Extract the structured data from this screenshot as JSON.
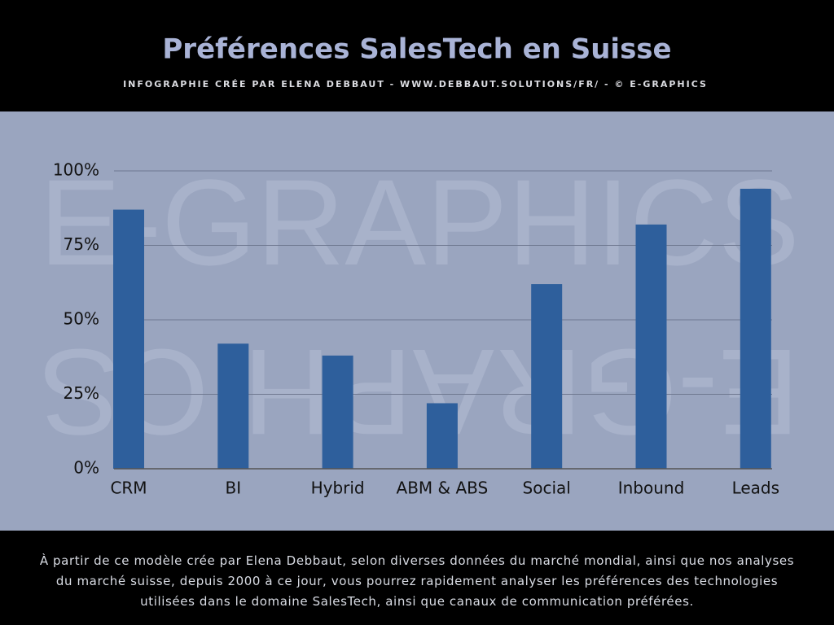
{
  "chart_data": {
    "type": "bar",
    "title": "Préférences SalesTech en Suisse",
    "subtitle": "INFOGRAPHIE CRÉE PAR ELENA DEBBAUT - WWW.DEBBAUT.SOLUTIONS/FR/ - © E-GRAPHICS",
    "watermark": "E-GRAPHICS",
    "categories": [
      "CRM",
      "BI",
      "Hybrid",
      "ABM & ABS",
      "Social",
      "Inbound",
      "Leads"
    ],
    "values": [
      87,
      42,
      38,
      22,
      62,
      82,
      94
    ],
    "color": "#2e5f9c",
    "ylim": [
      0,
      100
    ],
    "yticks": [
      {
        "value": 0,
        "label": "0%"
      },
      {
        "value": 25,
        "label": "25%"
      },
      {
        "value": 50,
        "label": "50%"
      },
      {
        "value": 75,
        "label": "75%"
      },
      {
        "value": 100,
        "label": "100%"
      }
    ],
    "grid": true,
    "footer": "À partir de ce modèle crée par Elena Debbaut, selon diverses données du marché mondial, ainsi que nos analyses du marché suisse, depuis 2000 à ce jour, vous pourrez rapidement analyser les préférences des technologies utilisées dans le domaine SalesTech, ainsi que canaux de communication préférées."
  }
}
